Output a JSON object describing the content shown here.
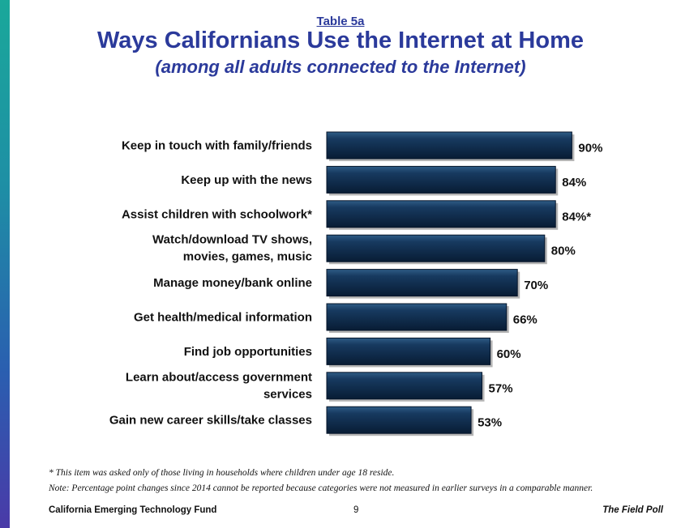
{
  "header": {
    "table_number": "Table 5a",
    "title": "Ways Californians Use the Internet at Home",
    "subtitle": "(among all adults connected to the Internet)"
  },
  "chart_data": {
    "type": "bar",
    "orientation": "horizontal",
    "categories": [
      [
        "Keep in touch with family/friends"
      ],
      [
        "Keep up with the news"
      ],
      [
        "Assist children with schoolwork*"
      ],
      [
        "Watch/download TV shows,",
        "movies, games, music"
      ],
      [
        "Manage money/bank online"
      ],
      [
        "Get health/medical information"
      ],
      [
        "Find job opportunities"
      ],
      [
        "Learn about/access government",
        "services"
      ],
      [
        "Gain new career skills/take classes"
      ]
    ],
    "values": [
      90,
      84,
      84,
      80,
      70,
      66,
      60,
      57,
      53
    ],
    "value_labels": [
      "90%",
      "84%",
      "84%*",
      "80%",
      "70%",
      "66%",
      "60%",
      "57%",
      "53%"
    ],
    "xlim": [
      0,
      100
    ],
    "bar_color": "#0d2a4a",
    "grid": false
  },
  "footnotes": {
    "asterisk": "*   This item was asked only of those living in households where children under age 18 reside.",
    "note": "Note: Percentage point changes since 2014 cannot be reported because categories were not measured in earlier surveys in a comparable manner."
  },
  "footer": {
    "left": "California Emerging Technology Fund",
    "page": "9",
    "right": "The Field Poll"
  }
}
